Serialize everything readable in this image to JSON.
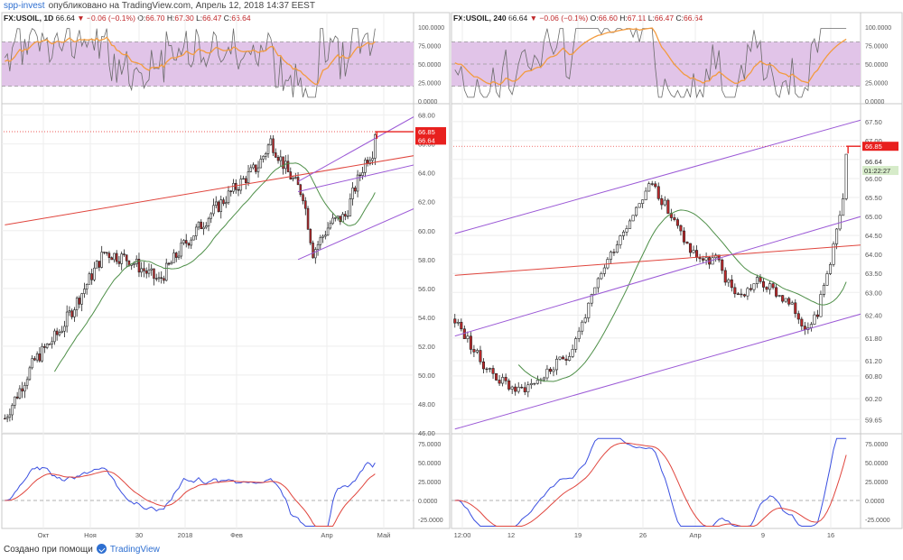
{
  "header": {
    "brand": "spp-invest",
    "text": "опубликовано на TradingView.com, Апрель 12, 2018 14:37 EEST"
  },
  "footer": {
    "text": "Создано при помощи",
    "brand": "TradingView"
  },
  "colors": {
    "up": "#ffffff",
    "down": "#c0292b",
    "wick": "#222222",
    "rsi_band": "#e1c4e8",
    "rsi_line": "#6b6b6b",
    "rsi_signal": "#f39b3f",
    "ma": "#4e8f48",
    "channel": "#9b59d6",
    "trend": "#e0453d",
    "osc_fast": "#3a4fe0",
    "osc_slow": "#e0453d",
    "price_tag": "#e8201e",
    "timer_tag": "#d6ebc9",
    "grid": "#eeeeee"
  },
  "chart_data": [
    {
      "type": "candlestick",
      "symbol": "FX:USOIL, 1D",
      "quote": {
        "last": "66.64",
        "change": "▼ −0.06 (−0.1%)",
        "o_label": "O:",
        "o": "66.70",
        "h_label": "H:",
        "h": "67.30",
        "l_label": "L:",
        "l": "66.47",
        "c_label": "C:",
        "c": "66.64"
      },
      "x_labels": [
        "Окт",
        "Ноя",
        "30",
        "2018",
        "Фев",
        "Апр",
        "Май"
      ],
      "price_ticks": [
        "68.00",
        "66.00",
        "64.00",
        "62.00",
        "60.00",
        "58.00",
        "56.00",
        "54.00",
        "52.00",
        "50.00",
        "48.00",
        "46.00"
      ],
      "ylim": [
        46,
        68.6
      ],
      "n_bars": 150,
      "n_space": 165,
      "anchors": [
        [
          0,
          47
        ],
        [
          12,
          51
        ],
        [
          22,
          53
        ],
        [
          32,
          56
        ],
        [
          40,
          58.5
        ],
        [
          50,
          58
        ],
        [
          62,
          56.5
        ],
        [
          72,
          59
        ],
        [
          82,
          61
        ],
        [
          93,
          63
        ],
        [
          102,
          64.5
        ],
        [
          107,
          66.2
        ],
        [
          114,
          64
        ],
        [
          120,
          62.5
        ],
        [
          124,
          58.5
        ],
        [
          131,
          60.5
        ],
        [
          137,
          61
        ],
        [
          141,
          63
        ],
        [
          145,
          64.8
        ],
        [
          148,
          65.5
        ],
        [
          150,
          63
        ],
        [
          156,
          61.8
        ],
        [
          162,
          64.5
        ],
        [
          165,
          66.64
        ]
      ],
      "seed": 7,
      "vol": 0.55,
      "ma_period": 20,
      "channel_lines": [
        [
          [
            118,
            58
          ],
          [
            171,
            62
          ]
        ],
        [
          [
            118,
            62.7
          ],
          [
            171,
            64.8
          ]
        ],
        [
          [
            118,
            63.4
          ],
          [
            171,
            68.5
          ]
        ]
      ],
      "trend_line": [
        [
          0,
          60.4
        ],
        [
          165,
          65.2
        ]
      ],
      "price_marker": {
        "price": "66.85",
        "last": "66.64"
      },
      "rsi_ticks": [
        "100.0000",
        "75.0000",
        "50.0000",
        "25.0000",
        "0.0000"
      ],
      "osc_ticks": [
        "75.0000",
        "50.0000",
        "25.0000",
        "0.0000",
        "-25.0000"
      ]
    },
    {
      "type": "candlestick",
      "symbol": "FX:USOIL, 240",
      "quote": {
        "last": "66.64",
        "change": "▼ −0.06 (−0.1%)",
        "o_label": "O:",
        "o": "66.60",
        "h_label": "H:",
        "h": "67.11",
        "l_label": "L:",
        "l": "66.47",
        "c_label": "C:",
        "c": "66.64"
      },
      "x_labels": [
        "12:00",
        "12",
        "19",
        "26",
        "Апр",
        "9",
        "16"
      ],
      "price_ticks": [
        "67.50",
        "67.00",
        "66.50",
        "66.00",
        "65.50",
        "65.00",
        "64.50",
        "64.00",
        "63.50",
        "63.00",
        "62.40",
        "61.80",
        "61.20",
        "60.80",
        "60.20",
        "59.65"
      ],
      "ylim": [
        59.3,
        67.9
      ],
      "n_bars": 124,
      "n_space": 128,
      "anchors": [
        [
          0,
          62.3
        ],
        [
          8,
          61.2
        ],
        [
          14,
          60.7
        ],
        [
          20,
          60.4
        ],
        [
          28,
          60.8
        ],
        [
          36,
          61.4
        ],
        [
          42,
          62.6
        ],
        [
          47,
          63.7
        ],
        [
          52,
          64.5
        ],
        [
          58,
          65.4
        ],
        [
          62,
          65.9
        ],
        [
          68,
          65.0
        ],
        [
          74,
          64.1
        ],
        [
          79,
          63.8
        ],
        [
          82,
          63.9
        ],
        [
          86,
          63.2
        ],
        [
          90,
          62.9
        ],
        [
          95,
          63.3
        ],
        [
          101,
          63.0
        ],
        [
          106,
          62.6
        ],
        [
          110,
          62.1
        ],
        [
          114,
          62.5
        ],
        [
          117,
          63.5
        ],
        [
          121,
          65.0
        ],
        [
          124,
          66.1
        ],
        [
          128,
          66.64
        ]
      ],
      "seed": 23,
      "vol": 0.16,
      "ma_period": 20,
      "channel_lines": [
        [
          [
            0,
            59.4
          ],
          [
            160,
            63.2
          ]
        ],
        [
          [
            0,
            61.85
          ],
          [
            160,
            65.8
          ]
        ],
        [
          [
            0,
            64.55
          ],
          [
            160,
            68.3
          ]
        ]
      ],
      "trend_line": [
        [
          0,
          63.45
        ],
        [
          160,
          64.45
        ]
      ],
      "price_marker": {
        "price": "66.85",
        "last": "66.64",
        "timer": "01:22:27"
      },
      "rsi_ticks": [
        "100.0000",
        "75.0000",
        "50.0000",
        "25.0000",
        "0.0000"
      ],
      "osc_ticks": [
        "75.0000",
        "50.0000",
        "25.0000",
        "0.0000",
        "-25.0000"
      ]
    }
  ]
}
